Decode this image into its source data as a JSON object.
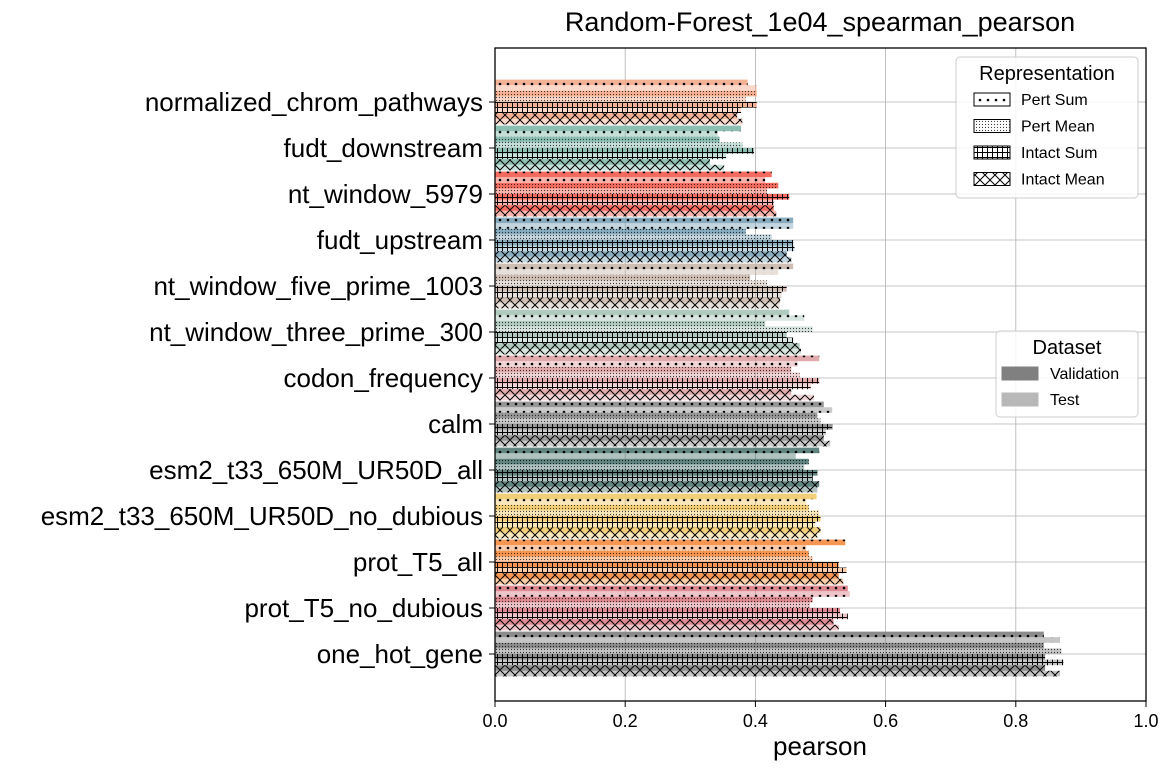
{
  "chart_data": {
    "type": "bar",
    "orientation": "horizontal",
    "title": "Random-Forest_1e04_spearman_pearson",
    "xlabel": "pearson",
    "ylabel": "",
    "xlim": [
      0,
      1.0
    ],
    "xticks": [
      "0.0",
      "0.2",
      "0.4",
      "0.6",
      "0.8",
      "1.0"
    ],
    "grid": true,
    "categories": [
      "normalized_chrom_pathways",
      "fudt_downstream",
      "nt_window_5979",
      "fudt_upstream",
      "nt_window_five_prime_1003",
      "nt_window_three_prime_300",
      "codon_frequency",
      "calm",
      "esm2_t33_650M_UR50D_all",
      "esm2_t33_650M_UR50D_no_dubious",
      "prot_T5_all",
      "prot_T5_no_dubious",
      "one_hot_gene"
    ],
    "category_colors": [
      "#f4a987",
      "#80b8a8",
      "#f25b4c",
      "#7ba2b6",
      "#c9b7ab",
      "#a9c4b8",
      "#dea1a3",
      "#8b8b8b",
      "#4f7873",
      "#f2c96a",
      "#f58b3f",
      "#d87c85",
      "#7f7f7f"
    ],
    "representation_legend": {
      "title": "Representation",
      "entries": [
        "Pert Sum",
        "Pert Mean",
        "Intact Sum",
        "Intact Mean"
      ],
      "hatches": [
        "dots",
        "fine-dots",
        "grid",
        "cross"
      ],
      "placement": "top-right"
    },
    "dataset_legend": {
      "title": "Dataset",
      "entries": [
        "Validation",
        "Test"
      ],
      "colors": [
        "#808080",
        "#b8b8b8"
      ],
      "placement": "center-right"
    },
    "series": [
      {
        "representation": "Pert Sum",
        "dataset": "Validation",
        "values": [
          0.388,
          0.378,
          0.425,
          0.458,
          0.458,
          0.452,
          0.498,
          0.505,
          0.498,
          0.494,
          0.538,
          0.542,
          0.843
        ]
      },
      {
        "representation": "Pert Sum",
        "dataset": "Test",
        "values": [
          0.402,
          0.342,
          0.415,
          0.458,
          0.435,
          0.475,
          0.465,
          0.518,
          0.462,
          0.478,
          0.478,
          0.545,
          0.868
        ]
      },
      {
        "representation": "Pert Mean",
        "dataset": "Validation",
        "values": [
          0.402,
          0.345,
          0.435,
          0.385,
          0.392,
          0.415,
          0.455,
          0.495,
          0.482,
          0.482,
          0.482,
          0.488,
          0.843
        ]
      },
      {
        "representation": "Pert Mean",
        "dataset": "Test",
        "values": [
          0.385,
          0.38,
          0.418,
          0.425,
          0.418,
          0.488,
          0.468,
          0.5,
          0.475,
          0.498,
          0.488,
          0.484,
          0.87
        ]
      },
      {
        "representation": "Intact Sum",
        "dataset": "Validation",
        "values": [
          0.402,
          0.398,
          0.452,
          0.458,
          0.448,
          0.448,
          0.498,
          0.518,
          0.495,
          0.5,
          0.528,
          0.53,
          0.845
        ]
      },
      {
        "representation": "Intact Sum",
        "dataset": "Test",
        "values": [
          0.378,
          0.355,
          0.428,
          0.46,
          0.44,
          0.458,
          0.485,
          0.508,
          0.488,
          0.492,
          0.54,
          0.542,
          0.873
        ]
      },
      {
        "representation": "Intact Mean",
        "dataset": "Validation",
        "values": [
          0.372,
          0.33,
          0.428,
          0.448,
          0.438,
          0.468,
          0.455,
          0.505,
          0.498,
          0.5,
          0.528,
          0.52,
          0.845
        ]
      },
      {
        "representation": "Intact Mean",
        "dataset": "Test",
        "values": [
          0.38,
          0.352,
          0.432,
          0.455,
          0.437,
          0.47,
          0.49,
          0.515,
          0.495,
          0.495,
          0.535,
          0.528,
          0.868
        ]
      }
    ]
  }
}
